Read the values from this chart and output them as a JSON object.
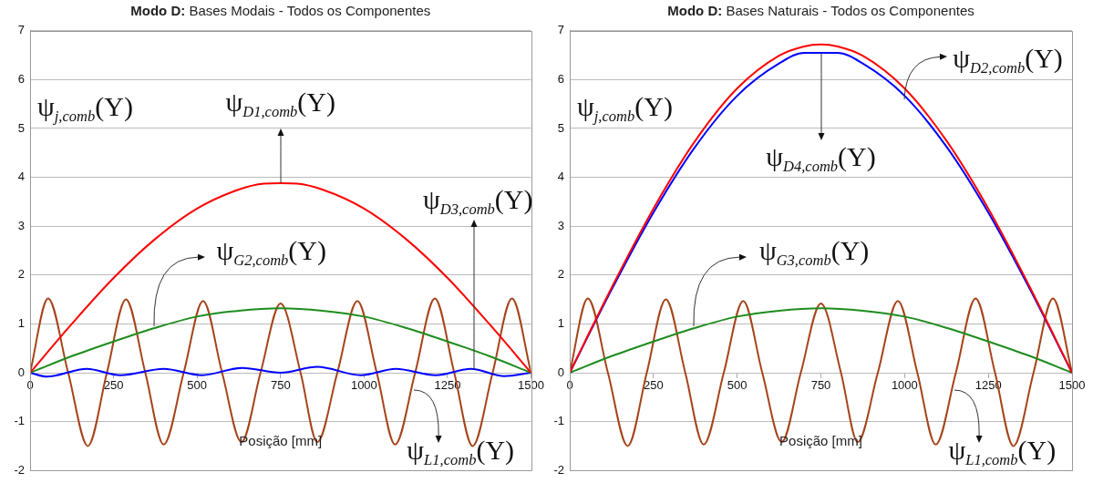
{
  "chart_data": [
    {
      "type": "line",
      "title": "Modo D: Bases Modais - Todos os Componentes",
      "xlabel": "Posição [mm]",
      "ylabel": "ψ$_{j,comb}$(Y)",
      "xlim": [
        0,
        1500
      ],
      "xticks": [
        0,
        250,
        500,
        750,
        1000,
        1250,
        1500
      ],
      "ylim": [
        -2,
        7
      ],
      "yticks": [
        -2,
        -1,
        0,
        1,
        2,
        3,
        4,
        5,
        6,
        7
      ],
      "grid": "y",
      "marker": "none",
      "line_style": "solid",
      "annotations": [
        {
          "text": "ψ$_{D1,comb}$(Y)",
          "x": 750,
          "y": 3.88
        },
        {
          "text": "ψ$_{D3,comb}$(Y)",
          "x": 1330,
          "y": 0.08
        },
        {
          "text": "ψ$_{G2,comb}$(Y)",
          "x": 370,
          "y": 0.95
        },
        {
          "text": "ψ$_{L1,comb}$(Y)",
          "x": 1150,
          "y": -0.35
        }
      ],
      "series": [
        {
          "color": "#ff0000",
          "x": [
            0,
            125,
            250,
            375,
            500,
            625,
            700,
            750,
            800,
            875,
            1000,
            1125,
            1250,
            1375,
            1500
          ],
          "values": [
            0,
            1.0,
            1.94,
            2.74,
            3.36,
            3.75,
            3.87,
            3.88,
            3.87,
            3.75,
            3.36,
            2.74,
            1.94,
            1.0,
            0
          ]
        },
        {
          "color": "#1e8c1e",
          "x": [
            0,
            125,
            250,
            375,
            500,
            625,
            750,
            875,
            1000,
            1125,
            1250,
            1375,
            1500
          ],
          "values": [
            0,
            0.34,
            0.64,
            0.92,
            1.15,
            1.27,
            1.32,
            1.27,
            1.15,
            0.92,
            0.64,
            0.34,
            0
          ]
        },
        {
          "color": "#0000ff",
          "x": [
            0,
            50,
            170,
            270,
            400,
            515,
            635,
            750,
            860,
            990,
            1095,
            1215,
            1320,
            1420,
            1500
          ],
          "values": [
            0,
            -0.08,
            0.08,
            -0.05,
            0.08,
            -0.05,
            0.1,
            0,
            0.12,
            -0.05,
            0.08,
            -0.05,
            0.08,
            -0.07,
            0
          ]
        },
        {
          "color": "#a5441a",
          "x": [
            0,
            54,
            114,
            173,
            230,
            287,
            345,
            400,
            460,
            518,
            575,
            633,
            690,
            750,
            810,
            860,
            920,
            980,
            1038,
            1093,
            1153,
            1212,
            1270,
            1325,
            1385,
            1443,
            1500
          ],
          "values": [
            0,
            1.52,
            0,
            -1.5,
            0,
            1.5,
            0,
            -1.47,
            0,
            1.47,
            0,
            -1.42,
            0,
            1.42,
            0,
            -1.42,
            0,
            1.47,
            0,
            -1.47,
            0,
            1.52,
            0,
            -1.5,
            0,
            1.52,
            0
          ]
        }
      ]
    },
    {
      "type": "line",
      "title": "Modo D: Bases Naturais - Todos os Componentes",
      "xlabel": "Posição [mm]",
      "ylabel": "ψ$_{j,comb}$(Y)",
      "xlim": [
        0,
        1500
      ],
      "xticks": [
        0,
        250,
        500,
        750,
        1000,
        1250,
        1500
      ],
      "ylim": [
        -2,
        7
      ],
      "yticks": [
        -2,
        -1,
        0,
        1,
        2,
        3,
        4,
        5,
        6,
        7
      ],
      "grid": "y",
      "marker": "none",
      "line_style": "solid",
      "annotations": [
        {
          "text": "ψ$_{D2,comb}$(Y)",
          "x": 1000,
          "y": 5.6
        },
        {
          "text": "ψ$_{D4,comb}$(Y)",
          "x": 750,
          "y": 6.55
        },
        {
          "text": "ψ$_{G3,comb}$(Y)",
          "x": 370,
          "y": 0.95
        },
        {
          "text": "ψ$_{L1,comb}$(Y)",
          "x": 1150,
          "y": -0.35
        }
      ],
      "series": [
        {
          "color": "#ff0000",
          "x": [
            0,
            125,
            250,
            375,
            500,
            625,
            700,
            750,
            800,
            875,
            1000,
            1125,
            1250,
            1375,
            1500
          ],
          "values": [
            0,
            1.74,
            3.36,
            4.75,
            5.82,
            6.49,
            6.68,
            6.72,
            6.68,
            6.49,
            5.82,
            4.75,
            3.36,
            1.74,
            0
          ]
        },
        {
          "color": "#0000ff",
          "x": [
            0,
            125,
            250,
            375,
            500,
            625,
            700,
            750,
            800,
            875,
            1000,
            1125,
            1250,
            1375,
            1500
          ],
          "values": [
            0,
            1.7,
            3.28,
            4.63,
            5.67,
            6.33,
            6.55,
            6.55,
            6.55,
            6.33,
            5.67,
            4.63,
            3.28,
            1.7,
            0
          ]
        },
        {
          "color": "#1e8c1e",
          "x": [
            0,
            125,
            250,
            375,
            500,
            625,
            750,
            875,
            1000,
            1125,
            1250,
            1375,
            1500
          ],
          "values": [
            0,
            0.34,
            0.64,
            0.92,
            1.15,
            1.27,
            1.32,
            1.27,
            1.15,
            0.92,
            0.64,
            0.34,
            0
          ]
        },
        {
          "color": "#a5441a",
          "x": [
            0,
            54,
            114,
            173,
            230,
            287,
            345,
            400,
            460,
            518,
            575,
            633,
            690,
            750,
            810,
            860,
            920,
            980,
            1038,
            1093,
            1153,
            1212,
            1270,
            1325,
            1385,
            1443,
            1500
          ],
          "values": [
            0,
            1.52,
            0,
            -1.5,
            0,
            1.5,
            0,
            -1.47,
            0,
            1.47,
            0,
            -1.42,
            0,
            1.42,
            0,
            -1.42,
            0,
            1.47,
            0,
            -1.47,
            0,
            1.52,
            0,
            -1.5,
            0,
            1.52,
            0
          ]
        }
      ]
    }
  ]
}
